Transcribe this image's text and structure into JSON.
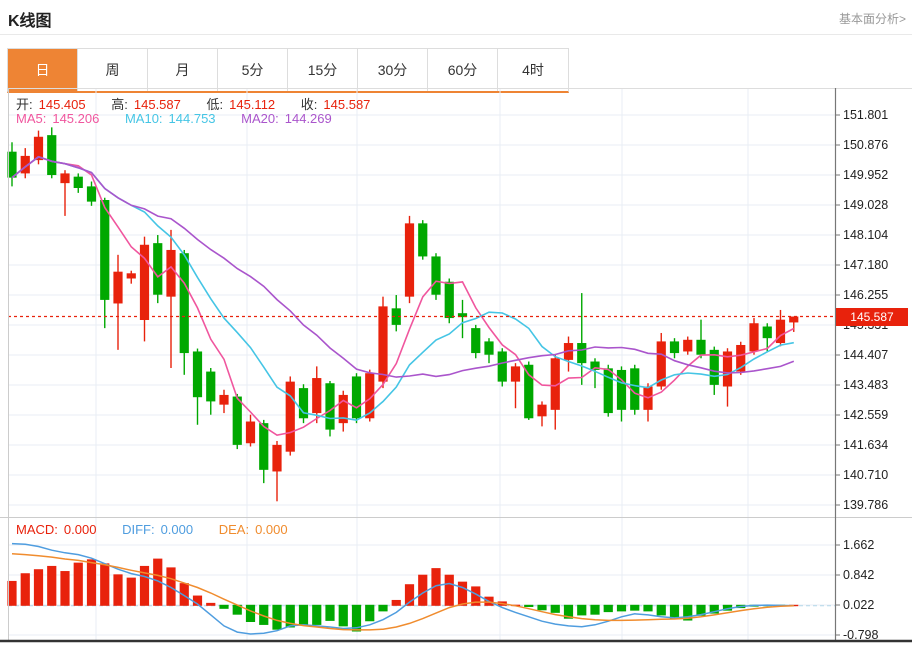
{
  "header": {
    "title": "K线图",
    "link": "基本面分析>"
  },
  "tabs": {
    "items": [
      "日",
      "周",
      "月",
      "5分",
      "15分",
      "30分",
      "60分",
      "4时"
    ],
    "selected_index": 0
  },
  "ohlc": {
    "o_label": "开:",
    "o": "145.405",
    "h_label": "高:",
    "h": "145.587",
    "l_label": "低:",
    "l": "145.112",
    "c_label": "收:",
    "c": "145.587"
  },
  "ma": {
    "ma5_label": "MA5:",
    "ma5": "145.206",
    "ma10_label": "MA10:",
    "ma10": "144.753",
    "ma20_label": "MA20:",
    "ma20": "144.269"
  },
  "macd": {
    "macd_label": "MACD:",
    "macd": "0.000",
    "diff_label": "DIFF:",
    "diff": "0.000",
    "dea_label": "DEA:",
    "dea": "0.000"
  },
  "price_axis": {
    "ticks": [
      "151.801",
      "150.876",
      "149.952",
      "149.028",
      "148.104",
      "147.180",
      "146.255",
      "145.331",
      "144.407",
      "143.483",
      "142.559",
      "141.634",
      "140.710",
      "139.786"
    ],
    "current_price": "145.587"
  },
  "macd_axis": {
    "ticks": [
      "1.662",
      "0.842",
      "0.022",
      "-0.798"
    ]
  },
  "colors": {
    "up": "#e8220c",
    "down": "#00a800",
    "ma5": "#f0569e",
    "ma10": "#45c5e5",
    "ma20": "#aa55cc",
    "diff": "#4f9ddf",
    "dea": "#f08c2e",
    "tab_accent": "#ee8434",
    "price_line": "#e8220c",
    "grid": "#e9eef4",
    "frame": "#cccccc",
    "axis_line": "#777777",
    "bottom_border": "#333333",
    "zero_dash": "#b5d8ea"
  },
  "chart_data": {
    "type": "candlestick+macd",
    "title": "K线图",
    "candle_format": [
      "open",
      "high",
      "low",
      "close"
    ],
    "up_means": "close>=open (red)",
    "down_means": "close<open (green)",
    "price_range": [
      139.786,
      151.801
    ],
    "macd_range": [
      -0.798,
      1.662
    ],
    "current_price": 145.587,
    "candles": [
      [
        150.67,
        150.96,
        149.6,
        149.87
      ],
      [
        150.0,
        150.78,
        149.85,
        150.54
      ],
      [
        150.41,
        151.32,
        150.28,
        151.13
      ],
      [
        151.18,
        151.42,
        149.85,
        149.95
      ],
      [
        149.7,
        150.1,
        148.69,
        150.0
      ],
      [
        149.9,
        150.0,
        149.4,
        149.55
      ],
      [
        149.6,
        149.75,
        149.0,
        149.13
      ],
      [
        149.18,
        149.25,
        145.23,
        146.1
      ],
      [
        145.99,
        147.49,
        144.56,
        146.97
      ],
      [
        146.76,
        147.0,
        146.6,
        146.92
      ],
      [
        145.48,
        148.05,
        144.82,
        147.8
      ],
      [
        147.85,
        148.1,
        146.0,
        146.26
      ],
      [
        146.2,
        148.26,
        144.0,
        147.64
      ],
      [
        147.54,
        147.64,
        143.79,
        144.46
      ],
      [
        144.51,
        144.6,
        142.25,
        143.1
      ],
      [
        143.89,
        144.0,
        142.56,
        142.97
      ],
      [
        142.87,
        143.33,
        142.61,
        143.17
      ],
      [
        143.12,
        143.2,
        141.5,
        141.63
      ],
      [
        141.68,
        142.56,
        141.58,
        142.35
      ],
      [
        142.3,
        142.4,
        140.45,
        140.86
      ],
      [
        140.81,
        141.75,
        139.89,
        141.63
      ],
      [
        141.42,
        143.74,
        141.3,
        143.58
      ],
      [
        143.38,
        143.5,
        142.3,
        142.45
      ],
      [
        142.61,
        144.05,
        142.3,
        143.69
      ],
      [
        143.53,
        143.6,
        141.89,
        142.1
      ],
      [
        142.3,
        143.3,
        142.04,
        143.17
      ],
      [
        143.74,
        143.84,
        142.3,
        142.45
      ],
      [
        142.45,
        143.95,
        142.35,
        143.84
      ],
      [
        143.58,
        146.2,
        143.38,
        145.9
      ],
      [
        145.84,
        146.25,
        145.13,
        145.33
      ],
      [
        146.2,
        148.69,
        146.0,
        148.46
      ],
      [
        148.46,
        148.56,
        147.34,
        147.44
      ],
      [
        147.44,
        147.54,
        146.1,
        146.26
      ],
      [
        146.66,
        146.76,
        145.38,
        145.54
      ],
      [
        145.69,
        146.1,
        144.92,
        145.57
      ],
      [
        145.23,
        145.33,
        144.3,
        144.46
      ],
      [
        144.82,
        144.92,
        144.15,
        144.41
      ],
      [
        144.51,
        144.61,
        143.43,
        143.58
      ],
      [
        143.58,
        144.15,
        142.76,
        144.05
      ],
      [
        144.1,
        144.2,
        142.4,
        142.45
      ],
      [
        142.51,
        142.97,
        142.2,
        142.87
      ],
      [
        142.71,
        144.4,
        142.1,
        144.3
      ],
      [
        144.25,
        144.97,
        143.89,
        144.77
      ],
      [
        144.77,
        146.31,
        143.48,
        144.15
      ],
      [
        144.2,
        144.3,
        143.38,
        143.94
      ],
      [
        143.99,
        144.1,
        142.5,
        142.61
      ],
      [
        143.94,
        144.05,
        142.35,
        142.71
      ],
      [
        143.99,
        144.1,
        142.56,
        142.71
      ],
      [
        142.71,
        143.53,
        142.35,
        143.43
      ],
      [
        143.43,
        145.08,
        143.33,
        144.82
      ],
      [
        144.82,
        144.92,
        144.3,
        144.46
      ],
      [
        144.51,
        144.97,
        144.41,
        144.87
      ],
      [
        144.87,
        145.49,
        144.3,
        144.41
      ],
      [
        144.56,
        144.66,
        143.17,
        143.48
      ],
      [
        143.43,
        144.61,
        142.81,
        144.51
      ],
      [
        143.89,
        144.81,
        143.79,
        144.71
      ],
      [
        144.51,
        145.54,
        144.41,
        145.38
      ],
      [
        145.28,
        145.38,
        144.51,
        144.92
      ],
      [
        144.77,
        145.79,
        144.67,
        145.49
      ],
      [
        145.405,
        145.587,
        145.112,
        145.587
      ]
    ],
    "ma_windows": [
      5,
      10,
      20
    ],
    "macd_hist": [
      0.68,
      0.89,
      1.0,
      1.09,
      0.95,
      1.18,
      1.27,
      1.16,
      0.86,
      0.77,
      1.09,
      1.29,
      1.05,
      0.62,
      0.28,
      0.08,
      -0.11,
      -0.27,
      -0.47,
      -0.55,
      -0.68,
      -0.62,
      -0.55,
      -0.55,
      -0.44,
      -0.59,
      -0.73,
      -0.45,
      -0.18,
      0.16,
      0.59,
      0.85,
      1.03,
      0.85,
      0.66,
      0.53,
      0.25,
      0.12,
      0.03,
      -0.06,
      -0.15,
      -0.22,
      -0.38,
      -0.29,
      -0.27,
      -0.2,
      -0.18,
      -0.16,
      -0.18,
      -0.29,
      -0.38,
      -0.43,
      -0.3,
      -0.24,
      -0.16,
      -0.09,
      -0.05,
      -0.03,
      -0.02,
      0.0
    ],
    "diff_line": [
      1.7,
      1.68,
      1.62,
      1.52,
      1.45,
      1.4,
      1.3,
      1.15,
      1.0,
      0.88,
      0.8,
      0.68,
      0.5,
      0.28,
      0.05,
      -0.25,
      -0.55,
      -0.72,
      -0.77,
      -0.75,
      -0.68,
      -0.55,
      -0.52,
      -0.55,
      -0.58,
      -0.62,
      -0.6,
      -0.52,
      -0.38,
      -0.18,
      0.1,
      0.35,
      0.55,
      0.61,
      0.5,
      0.32,
      0.12,
      -0.05,
      -0.18,
      -0.3,
      -0.42,
      -0.5,
      -0.55,
      -0.57,
      -0.52,
      -0.42,
      -0.3,
      -0.22,
      -0.25,
      -0.3,
      -0.33,
      -0.3,
      -0.24,
      -0.16,
      -0.08,
      -0.02,
      0.01,
      0.02,
      0.01,
      0.0
    ],
    "dea_line": [
      1.42,
      1.4,
      1.37,
      1.33,
      1.28,
      1.24,
      1.18,
      1.12,
      1.05,
      0.97,
      0.9,
      0.83,
      0.74,
      0.62,
      0.5,
      0.35,
      0.18,
      0.02,
      -0.14,
      -0.28,
      -0.4,
      -0.48,
      -0.54,
      -0.58,
      -0.62,
      -0.65,
      -0.66,
      -0.66,
      -0.64,
      -0.58,
      -0.48,
      -0.35,
      -0.2,
      -0.05,
      0.05,
      0.1,
      0.1,
      0.06,
      0.0,
      -0.08,
      -0.16,
      -0.24,
      -0.3,
      -0.35,
      -0.38,
      -0.4,
      -0.4,
      -0.39,
      -0.38,
      -0.37,
      -0.36,
      -0.34,
      -0.3,
      -0.25,
      -0.19,
      -0.13,
      -0.08,
      -0.04,
      -0.01,
      0.0
    ]
  }
}
